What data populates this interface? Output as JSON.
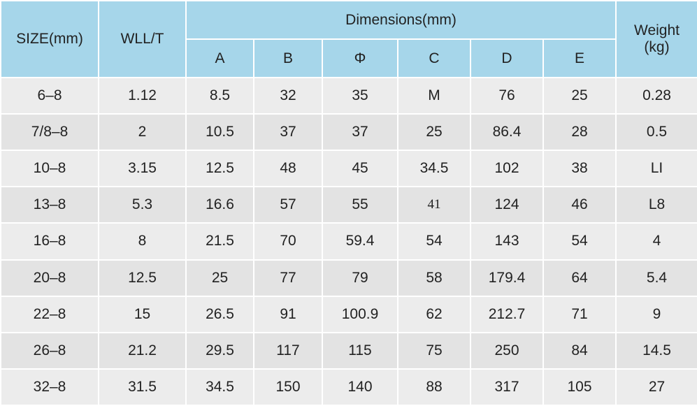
{
  "header": {
    "size": "SIZE(mm)",
    "wll": "WLL/T",
    "dimensions": "Dimensions(mm)",
    "weight": [
      "Weight",
      "(kg)"
    ],
    "dims": [
      "A",
      "B",
      "Φ",
      "C",
      "D",
      "E"
    ]
  },
  "table": {
    "rows": [
      [
        "6–8",
        "1.12",
        "8.5",
        "32",
        "35",
        "M",
        "76",
        "25",
        "0.28"
      ],
      [
        "7/8–8",
        "2",
        "10.5",
        "37",
        "37",
        "25",
        "86.4",
        "28",
        "0.5"
      ],
      [
        "10–8",
        "3.15",
        "12.5",
        "48",
        "45",
        "34.5",
        "102",
        "38",
        "LI"
      ],
      [
        "13–8",
        "5.3",
        "16.6",
        "57",
        "55",
        "41",
        "124",
        "46",
        "L8"
      ],
      [
        "16–8",
        "8",
        "21.5",
        "70",
        "59.4",
        "54",
        "143",
        "54",
        "4"
      ],
      [
        "20–8",
        "12.5",
        "25",
        "77",
        "79",
        "58",
        "179.4",
        "64",
        "5.4"
      ],
      [
        "22–8",
        "15",
        "26.5",
        "91",
        "100.9",
        "62",
        "212.7",
        "71",
        "9"
      ],
      [
        "26–8",
        "21.2",
        "29.5",
        "117",
        "115",
        "75",
        "250",
        "84",
        "14.5"
      ],
      [
        "32–8",
        "31.5",
        "34.5",
        "150",
        "140",
        "88",
        "317",
        "105",
        "27"
      ]
    ]
  }
}
